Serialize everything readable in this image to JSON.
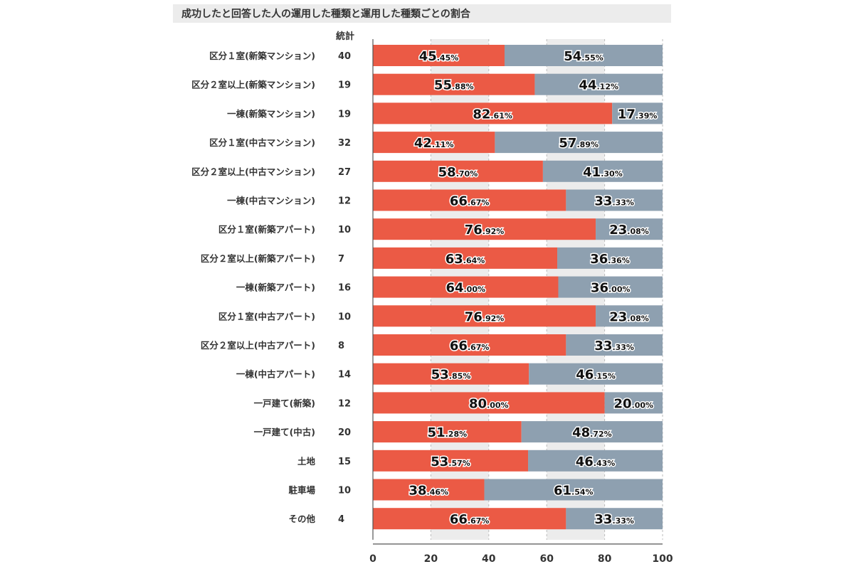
{
  "title": "成功したと回答した人の運用した種類と運用した種類ごとの割合",
  "count_header": "統計",
  "colors": {
    "success": "#eb5a45",
    "other": "#8ea0b0",
    "grid_band": "#ececec",
    "axis": "#555555"
  },
  "chart_data": {
    "type": "bar",
    "orientation": "horizontal",
    "stacked": true,
    "xlim": [
      0,
      100
    ],
    "xticks": [
      "0",
      "20",
      "40",
      "60",
      "80",
      "100"
    ],
    "legend": "none",
    "categories": [
      "区分１室(新築マンション)",
      "区分２室以上(新築マンション)",
      "一棟(新築マンション)",
      "区分１室(中古マンション)",
      "区分２室以上(中古マンション)",
      "一棟(中古マンション)",
      "区分１室(新築アパート)",
      "区分２室以上(新築アパート)",
      "一棟(新築アパート)",
      "区分１室(中古アパート)",
      "区分２室以上(中古アパート)",
      "一棟(中古アパート)",
      "一戸建て(新築)",
      "一戸建て(中古)",
      "土地",
      "駐車場",
      "その他"
    ],
    "counts": [
      "40",
      "19",
      "19",
      "32",
      "27",
      "12",
      "10",
      "7",
      "16",
      "10",
      "8",
      "14",
      "12",
      "20",
      "15",
      "10",
      "4"
    ],
    "series": [
      {
        "values": [
          45.45,
          55.88,
          82.61,
          42.11,
          58.7,
          66.67,
          76.92,
          63.64,
          64.0,
          76.92,
          66.67,
          53.85,
          80.0,
          51.28,
          53.57,
          38.46,
          66.67
        ]
      },
      {
        "values": [
          54.55,
          44.12,
          17.39,
          57.89,
          41.3,
          33.33,
          23.08,
          36.36,
          36.0,
          23.08,
          33.33,
          46.15,
          20.0,
          48.72,
          46.43,
          61.54,
          33.33
        ]
      }
    ],
    "labels": [
      [
        "45",
        ".45%"
      ],
      [
        "55",
        ".88%"
      ],
      [
        "82",
        ".61%"
      ],
      [
        "42",
        ".11%"
      ],
      [
        "58",
        ".70%"
      ],
      [
        "66",
        ".67%"
      ],
      [
        "76",
        ".92%"
      ],
      [
        "63",
        ".64%"
      ],
      [
        "64",
        ".00%"
      ],
      [
        "76",
        ".92%"
      ],
      [
        "66",
        ".67%"
      ],
      [
        "53",
        ".85%"
      ],
      [
        "80",
        ".00%"
      ],
      [
        "51",
        ".28%"
      ],
      [
        "53",
        ".57%"
      ],
      [
        "38",
        ".46%"
      ],
      [
        "66",
        ".67%"
      ]
    ],
    "labels_other": [
      [
        "54",
        ".55%"
      ],
      [
        "44",
        ".12%"
      ],
      [
        "17",
        ".39%"
      ],
      [
        "57",
        ".89%"
      ],
      [
        "41",
        ".30%"
      ],
      [
        "33",
        ".33%"
      ],
      [
        "23",
        ".08%"
      ],
      [
        "36",
        ".36%"
      ],
      [
        "36",
        ".00%"
      ],
      [
        "23",
        ".08%"
      ],
      [
        "33",
        ".33%"
      ],
      [
        "46",
        ".15%"
      ],
      [
        "20",
        ".00%"
      ],
      [
        "48",
        ".72%"
      ],
      [
        "46",
        ".43%"
      ],
      [
        "61",
        ".54%"
      ],
      [
        "33",
        ".33%"
      ]
    ]
  }
}
